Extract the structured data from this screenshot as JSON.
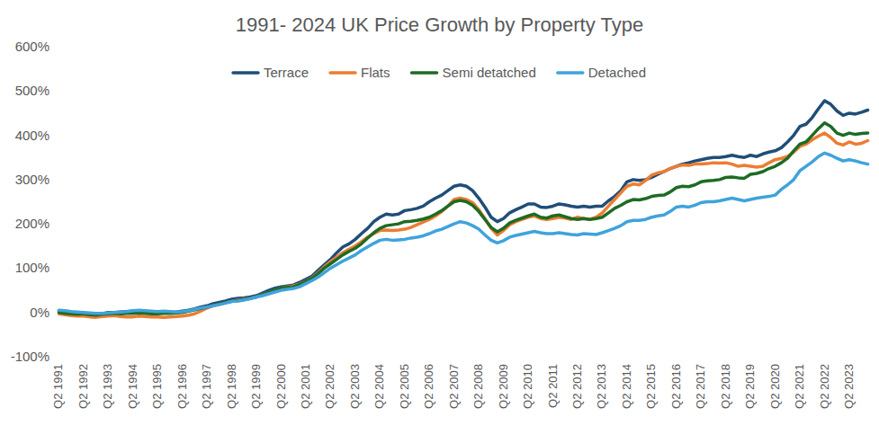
{
  "chart_data": {
    "type": "line",
    "title": "1991- 2024 UK Price Growth by Property Type",
    "categories": [
      "Q2 1991",
      null,
      null,
      null,
      "Q2 1992",
      null,
      null,
      null,
      "Q2 1993",
      null,
      null,
      null,
      "Q2 1994",
      null,
      null,
      null,
      "Q2 1995",
      null,
      null,
      null,
      "Q2 1996",
      null,
      null,
      null,
      "Q2 1997",
      null,
      null,
      null,
      "Q2 1998",
      null,
      null,
      null,
      "Q2 1999",
      null,
      null,
      null,
      "Q2 2000",
      null,
      null,
      null,
      "Q2 2001",
      null,
      null,
      null,
      "Q2 2002",
      null,
      null,
      null,
      "Q2 2003",
      null,
      null,
      null,
      "Q2 2004",
      null,
      null,
      null,
      "Q2 2005",
      null,
      null,
      null,
      "Q2 2006",
      null,
      null,
      null,
      "Q2 2007",
      null,
      null,
      null,
      "Q2 2008",
      null,
      null,
      null,
      "Q2 2009",
      null,
      null,
      null,
      "Q2 2010",
      null,
      null,
      null,
      "Q2 2011",
      null,
      null,
      null,
      "Q2 2012",
      null,
      null,
      null,
      "Q2 2013",
      null,
      null,
      null,
      "Q2 2014",
      null,
      null,
      null,
      "Q2 2015",
      null,
      null,
      null,
      "Q2 2016",
      null,
      null,
      null,
      "Q2 2017",
      null,
      null,
      null,
      "Q2 2018",
      null,
      null,
      null,
      "Q2 2019",
      null,
      null,
      null,
      "Q2 2020",
      null,
      null,
      null,
      "Q2 2021",
      null,
      null,
      null,
      "Q2 2022",
      null,
      null,
      null,
      "Q2 2023",
      null,
      null,
      null
    ],
    "series": [
      {
        "name": "Terrace",
        "color": "#1f4e79",
        "values": [
          3,
          2,
          0,
          -2,
          -2,
          -4,
          -5,
          -3,
          0,
          0,
          1,
          2,
          3,
          4,
          2,
          1,
          0,
          1,
          0,
          1,
          3,
          5,
          8,
          12,
          15,
          20,
          23,
          26,
          30,
          32,
          33,
          35,
          38,
          44,
          50,
          55,
          58,
          60,
          62,
          68,
          75,
          82,
          95,
          108,
          120,
          135,
          148,
          155,
          165,
          178,
          190,
          205,
          215,
          222,
          220,
          222,
          230,
          232,
          235,
          240,
          250,
          258,
          265,
          275,
          285,
          288,
          285,
          275,
          258,
          238,
          215,
          205,
          212,
          225,
          232,
          238,
          245,
          245,
          238,
          237,
          240,
          245,
          243,
          240,
          238,
          240,
          238,
          240,
          240,
          252,
          262,
          275,
          295,
          300,
          298,
          300,
          305,
          312,
          318,
          325,
          330,
          335,
          338,
          342,
          345,
          348,
          350,
          350,
          352,
          355,
          352,
          350,
          355,
          352,
          358,
          362,
          365,
          372,
          385,
          400,
          420,
          425,
          440,
          460,
          478,
          470,
          455,
          445,
          450,
          448,
          452,
          457
        ]
      },
      {
        "name": "Flats",
        "color": "#ed7d31",
        "values": [
          -3,
          -5,
          -7,
          -8,
          -8,
          -10,
          -11,
          -9,
          -8,
          -7,
          -9,
          -10,
          -10,
          -8,
          -9,
          -10,
          -10,
          -11,
          -10,
          -9,
          -8,
          -6,
          -3,
          3,
          10,
          15,
          18,
          22,
          25,
          28,
          30,
          32,
          35,
          40,
          45,
          50,
          55,
          58,
          60,
          64,
          70,
          78,
          90,
          103,
          115,
          125,
          135,
          143,
          150,
          160,
          170,
          178,
          185,
          186,
          185,
          186,
          188,
          192,
          198,
          204,
          210,
          218,
          228,
          240,
          255,
          258,
          255,
          248,
          232,
          212,
          190,
          175,
          185,
          198,
          205,
          210,
          215,
          218,
          212,
          210,
          212,
          215,
          213,
          210,
          215,
          212,
          210,
          215,
          225,
          240,
          255,
          270,
          285,
          290,
          288,
          298,
          310,
          315,
          318,
          325,
          330,
          333,
          332,
          335,
          335,
          336,
          338,
          337,
          338,
          335,
          330,
          332,
          330,
          328,
          330,
          338,
          345,
          348,
          352,
          362,
          375,
          380,
          390,
          398,
          405,
          395,
          382,
          378,
          385,
          380,
          382,
          388
        ]
      },
      {
        "name": "Semi detatched",
        "color": "#1e6b24",
        "values": [
          0,
          -2,
          -3,
          -4,
          -3,
          -5,
          -6,
          -4,
          -3,
          -2,
          -3,
          -2,
          -2,
          -1,
          -2,
          -3,
          -3,
          -2,
          -2,
          -1,
          0,
          3,
          6,
          9,
          12,
          16,
          19,
          22,
          25,
          27,
          29,
          32,
          35,
          40,
          45,
          50,
          55,
          57,
          58,
          63,
          70,
          77,
          88,
          100,
          110,
          120,
          130,
          138,
          145,
          155,
          168,
          180,
          190,
          196,
          198,
          200,
          205,
          206,
          208,
          211,
          215,
          222,
          230,
          240,
          250,
          253,
          250,
          242,
          228,
          210,
          192,
          182,
          190,
          202,
          208,
          213,
          218,
          222,
          215,
          213,
          218,
          220,
          216,
          212,
          210,
          212,
          210,
          212,
          215,
          225,
          235,
          242,
          250,
          255,
          254,
          257,
          262,
          264,
          265,
          272,
          282,
          285,
          284,
          288,
          295,
          297,
          298,
          300,
          305,
          306,
          304,
          303,
          312,
          314,
          318,
          325,
          330,
          338,
          348,
          365,
          380,
          385,
          400,
          415,
          428,
          420,
          405,
          400,
          405,
          402,
          404,
          405
        ]
      },
      {
        "name": "Detached",
        "color": "#3fa3dc",
        "values": [
          5,
          4,
          2,
          1,
          0,
          -1,
          -2,
          -2,
          -1,
          0,
          1,
          2,
          4,
          5,
          4,
          3,
          2,
          3,
          2,
          1,
          2,
          4,
          7,
          10,
          12,
          15,
          18,
          21,
          25,
          26,
          28,
          31,
          35,
          38,
          42,
          46,
          50,
          52,
          54,
          58,
          65,
          72,
          80,
          90,
          100,
          108,
          116,
          123,
          130,
          140,
          148,
          156,
          163,
          165,
          163,
          164,
          165,
          168,
          170,
          173,
          178,
          184,
          188,
          194,
          200,
          205,
          202,
          196,
          188,
          175,
          163,
          157,
          162,
          170,
          174,
          177,
          180,
          183,
          180,
          178,
          178,
          180,
          178,
          176,
          175,
          178,
          177,
          176,
          180,
          185,
          190,
          196,
          205,
          208,
          208,
          210,
          215,
          218,
          220,
          228,
          238,
          240,
          238,
          242,
          248,
          250,
          250,
          252,
          255,
          258,
          255,
          252,
          255,
          258,
          260,
          262,
          265,
          278,
          288,
          300,
          320,
          330,
          340,
          352,
          360,
          355,
          348,
          342,
          345,
          342,
          338,
          335
        ]
      }
    ],
    "ylim": [
      -100,
      600
    ],
    "yticks": [
      {
        "value": -100,
        "label": "-100%"
      },
      {
        "value": 0,
        "label": "0%"
      },
      {
        "value": 100,
        "label": "100%"
      },
      {
        "value": 200,
        "label": "200%"
      },
      {
        "value": 300,
        "label": "300%"
      },
      {
        "value": 400,
        "label": "400%"
      },
      {
        "value": 500,
        "label": "500%"
      },
      {
        "value": 600,
        "label": "600%"
      }
    ],
    "grid": false,
    "legend": "top"
  }
}
